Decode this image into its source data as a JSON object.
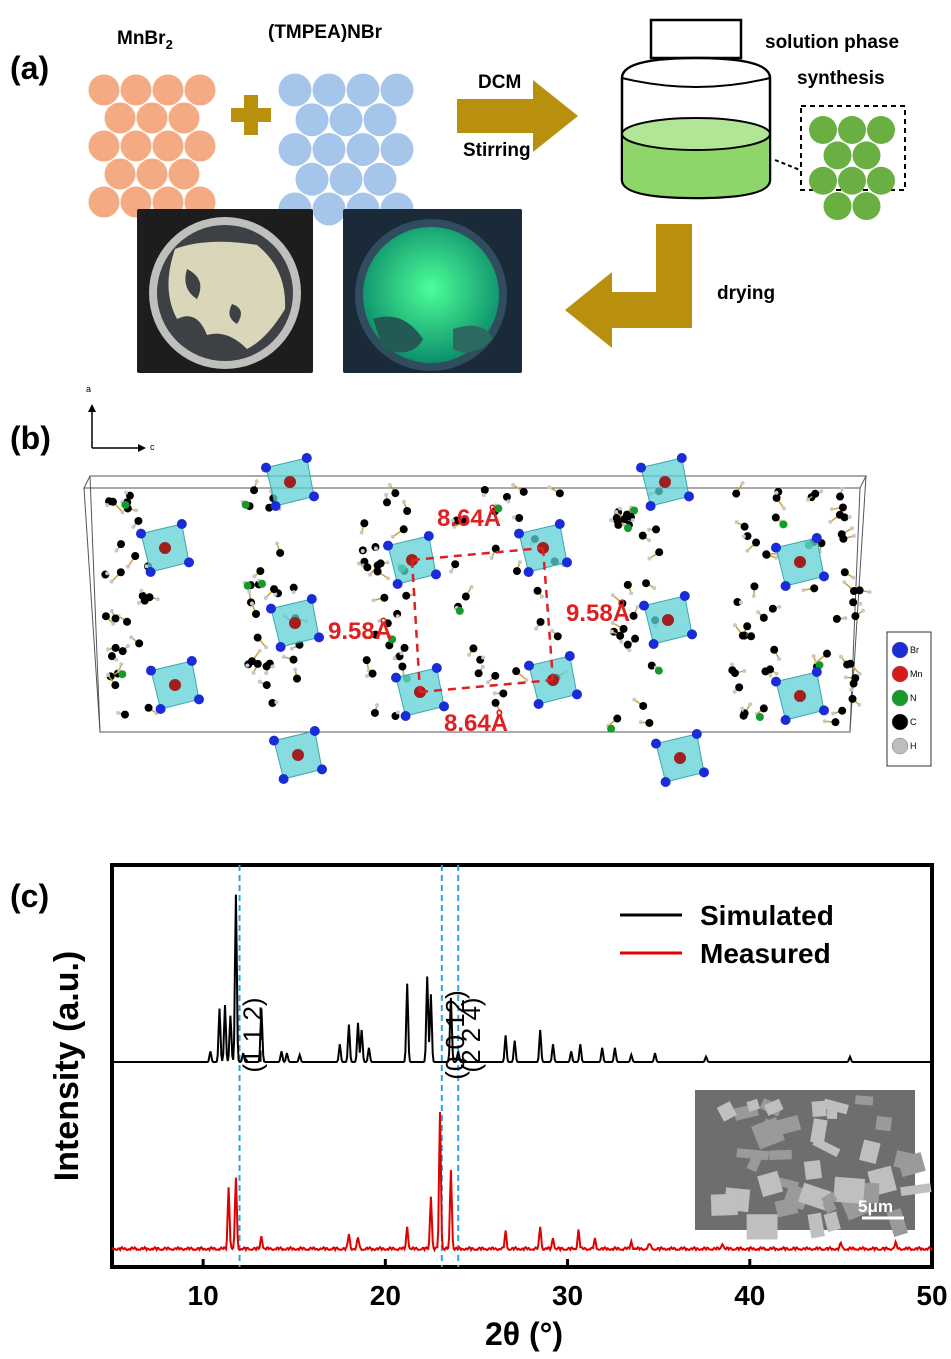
{
  "panel_a": {
    "label": "(a)",
    "reagent1": "MnBr",
    "reagent1_sub": "2",
    "reagent2": "(TMPEA)NBr",
    "arrow_top": "DCM",
    "arrow_bottom": "Stirring",
    "synthesis_line1": "solution phase",
    "synthesis_line2": "synthesis",
    "drying": "drying",
    "colors": {
      "reagent1": "#f4aa82",
      "reagent2": "#a5c6ea",
      "product": "#6aaf42",
      "arrow": "#b8900e",
      "solution": "#8fd66a"
    }
  },
  "panel_b": {
    "label": "(b)",
    "axis_up": "a",
    "axis_right": "c",
    "dist_top": "8.64Å",
    "dist_bottom": "8.64Å",
    "dist_left": "9.58Å",
    "dist_right": "9.58Å",
    "legend": [
      {
        "symbol": "Br",
        "color": "#1a2bd8"
      },
      {
        "symbol": "Mn",
        "color": "#d81a1a"
      },
      {
        "symbol": "N",
        "color": "#169a2a"
      },
      {
        "symbol": "C",
        "color": "#000000"
      },
      {
        "symbol": "H",
        "color": "#bdbdbd"
      }
    ]
  },
  "panel_c": {
    "label": "(c)",
    "inset_scale": "5μm"
  },
  "chart_data": {
    "type": "line",
    "xlabel": "2θ (°)",
    "ylabel": "Intensity (a.u.)",
    "xlim": [
      5,
      50
    ],
    "xticks": [
      10,
      20,
      30,
      40,
      50
    ],
    "legend_position": "top-right",
    "series": [
      {
        "name": "Simulated",
        "color": "#000000",
        "peaks": [
          [
            10.4,
            0.06
          ],
          [
            10.9,
            0.3
          ],
          [
            11.2,
            0.32
          ],
          [
            11.5,
            0.26
          ],
          [
            11.8,
            0.94
          ],
          [
            12.2,
            0.05
          ],
          [
            13.2,
            0.3
          ],
          [
            14.3,
            0.06
          ],
          [
            14.6,
            0.05
          ],
          [
            15.3,
            0.04
          ],
          [
            17.5,
            0.1
          ],
          [
            18.0,
            0.21
          ],
          [
            18.5,
            0.22
          ],
          [
            18.7,
            0.18
          ],
          [
            19.1,
            0.08
          ],
          [
            21.2,
            0.44
          ],
          [
            22.3,
            0.48
          ],
          [
            22.5,
            0.38
          ],
          [
            23.6,
            0.36
          ],
          [
            24.0,
            0.06
          ],
          [
            26.6,
            0.15
          ],
          [
            27.1,
            0.12
          ],
          [
            28.5,
            0.18
          ],
          [
            29.2,
            0.1
          ],
          [
            30.2,
            0.06
          ],
          [
            30.7,
            0.1
          ],
          [
            31.9,
            0.08
          ],
          [
            32.6,
            0.08
          ],
          [
            33.5,
            0.04
          ],
          [
            34.8,
            0.05
          ],
          [
            37.6,
            0.03
          ],
          [
            45.5,
            0.03
          ]
        ]
      },
      {
        "name": "Measured",
        "color": "#e00000",
        "peaks": [
          [
            11.4,
            0.33
          ],
          [
            11.8,
            0.38
          ],
          [
            13.2,
            0.07
          ],
          [
            18.0,
            0.08
          ],
          [
            18.5,
            0.06
          ],
          [
            21.2,
            0.12
          ],
          [
            22.5,
            0.28
          ],
          [
            23.0,
            0.72
          ],
          [
            23.6,
            0.42
          ],
          [
            26.6,
            0.09
          ],
          [
            28.5,
            0.12
          ],
          [
            29.2,
            0.06
          ],
          [
            30.6,
            0.1
          ],
          [
            31.5,
            0.05
          ],
          [
            33.5,
            0.04
          ],
          [
            34.5,
            0.03
          ],
          [
            38.5,
            0.03
          ],
          [
            45.0,
            0.03
          ],
          [
            48.0,
            0.03
          ]
        ]
      }
    ],
    "reference_lines": [
      {
        "x": 12.0,
        "hkl": "(1 1 2)"
      },
      {
        "x": 23.1,
        "hkl": "(0 0 12)"
      },
      {
        "x": 24.0,
        "hkl": "(2 2 4)"
      }
    ]
  }
}
